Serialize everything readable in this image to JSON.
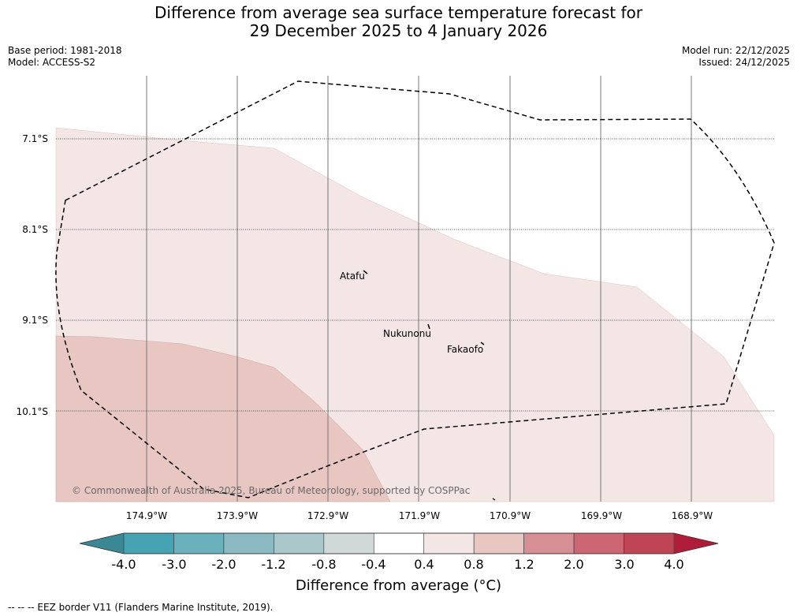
{
  "title_line1": "Difference from average sea surface temperature forecast for",
  "title_line2": "29 December 2025 to 4 January 2026",
  "base_period": "Base period: 1981-2018",
  "model": "Model: ACCESS-S2",
  "model_run": "Model run: 22/12/2025",
  "issued": "Issued: 24/12/2025",
  "copyright": "© Commonwealth of Australia 2025, Bureau of Meteorology, supported by COSPPac",
  "footnote": "--  --  -- EEZ border V11 (Flanders Marine Institute, 2019).",
  "chart_data": {
    "type": "heatmap",
    "title": "Difference from average sea surface temperature forecast for 29 December 2025 to 4 January 2026",
    "latitude_ticks": [
      "7.1°S",
      "8.1°S",
      "9.1°S",
      "10.1°S"
    ],
    "longitude_ticks": [
      "174.9°W",
      "173.9°W",
      "172.9°W",
      "171.9°W",
      "170.9°W",
      "169.9°W",
      "168.9°W"
    ],
    "places": [
      {
        "name": "Atafu"
      },
      {
        "name": "Nukunonu"
      },
      {
        "name": "Fakaofo"
      }
    ],
    "regions": [
      {
        "category": "0.4 to 0.8",
        "area": "north-west and central band"
      },
      {
        "category": "0.8 to 1.2",
        "area": "south-west corner"
      },
      {
        "category": "-0.4 to 0.4",
        "area": "north-east"
      }
    ],
    "colorbar": {
      "label": "Difference from average (°C)",
      "tick_labels": [
        "-4.0",
        "-3.0",
        "-2.0",
        "-1.2",
        "-0.8",
        "-0.4",
        "0.4",
        "0.8",
        "1.2",
        "2.0",
        "3.0",
        "4.0"
      ],
      "bins": [
        {
          "from": "-4.0",
          "to": "-3.0",
          "color": "#45a3b3"
        },
        {
          "from": "-3.0",
          "to": "-2.0",
          "color": "#6ab0bd"
        },
        {
          "from": "-2.0",
          "to": "-1.2",
          "color": "#8bbac3"
        },
        {
          "from": "-1.2",
          "to": "-0.8",
          "color": "#aac8cb"
        },
        {
          "from": "-0.8",
          "to": "-0.4",
          "color": "#d0d8d8"
        },
        {
          "from": "-0.4",
          "to": "0.4",
          "color": "#ffffff"
        },
        {
          "from": "0.4",
          "to": "0.8",
          "color": "#f3e6e5"
        },
        {
          "from": "0.8",
          "to": "1.2",
          "color": "#e8c6c2"
        },
        {
          "from": "1.2",
          "to": "2.0",
          "color": "#d78f96"
        },
        {
          "from": "2.0",
          "to": "3.0",
          "color": "#cc6672"
        },
        {
          "from": "3.0",
          "to": "4.0",
          "color": "#bf4555"
        }
      ],
      "under_color": "#3a8893",
      "over_color": "#ae1c3a"
    }
  }
}
